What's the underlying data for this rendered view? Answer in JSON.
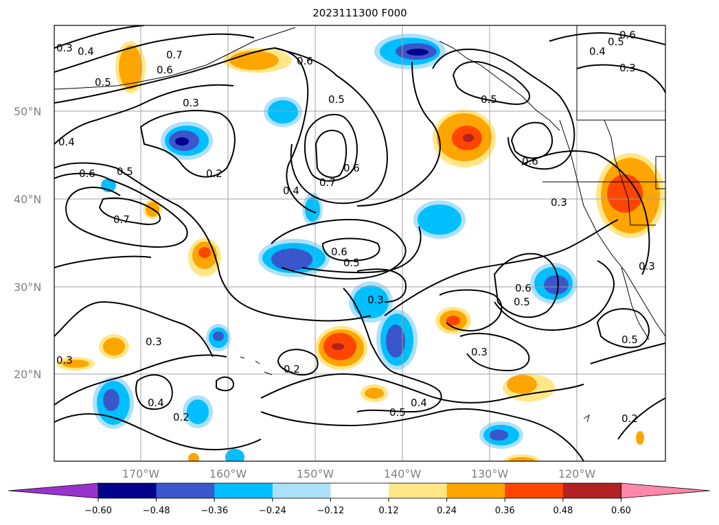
{
  "title": "2023111300 F000",
  "latitude_labels": [
    "50°N",
    "40°N",
    "30°N",
    "20°N"
  ],
  "longitude_labels": [
    "170°W",
    "160°W",
    "150°W",
    "140°W",
    "130°W",
    "120°W"
  ],
  "contour_labels": [
    "0.3",
    "0.4",
    "0.7",
    "0.6",
    "0.6",
    "0.5",
    "0.6",
    "0.4",
    "0.3",
    "0.5",
    "0.7",
    "0.6",
    "0.5",
    "0.6",
    "0.5",
    "0.4",
    "0.3",
    "0.2",
    "0.6",
    "0.5",
    "0.7",
    "0.4",
    "0.6",
    "0.5",
    "0.3",
    "0.3",
    "0.6",
    "0.5",
    "0.3",
    "0.3",
    "0.3",
    "0.2",
    "0.4",
    "0.2",
    "0.5",
    "0.4",
    "0.3",
    "0.5",
    "0.2"
  ],
  "colorbar": {
    "colors": [
      "#9932cc",
      "#00008b",
      "#3a56cc",
      "#00bfff",
      "#ade1fa",
      "#ffffff",
      "#ffe788",
      "#ffa500",
      "#ff4500",
      "#b22222",
      "#ff88aa"
    ],
    "tick_labels": [
      "−0.60",
      "−0.48",
      "−0.36",
      "−0.24",
      "−0.12",
      "0.12",
      "0.24",
      "0.36",
      "0.48",
      "0.60"
    ]
  }
}
